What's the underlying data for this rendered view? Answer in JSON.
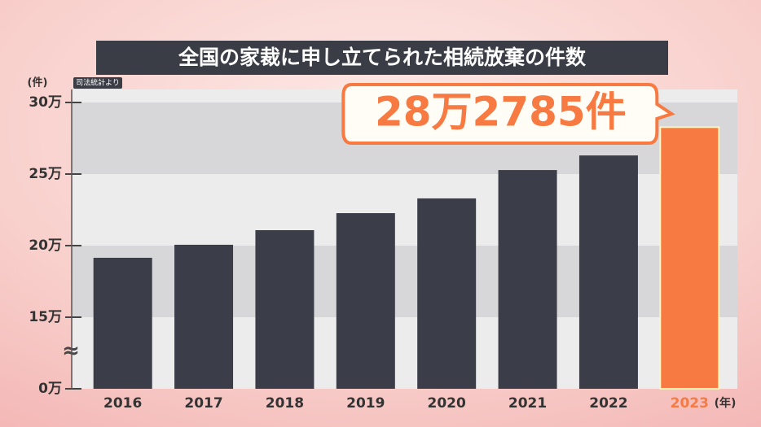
{
  "chart_data": {
    "type": "bar",
    "title": "全国の家裁に申し立てられた相続放棄の件数",
    "y_unit": "(件)",
    "x_unit": "(年)",
    "source": "司法統計より",
    "categories": [
      "2016",
      "2017",
      "2018",
      "2019",
      "2020",
      "2021",
      "2022",
      "2023"
    ],
    "values": [
      191500,
      200600,
      210800,
      222700,
      233000,
      252800,
      263000,
      282785
    ],
    "value_labels": [
      null,
      null,
      null,
      null,
      null,
      null,
      null,
      "28万2785件"
    ],
    "color": "#3b3e49",
    "highlight_index": 7,
    "highlight_color": "#f77a42",
    "ylim": [
      0,
      300000
    ],
    "axis_break": [
      0,
      150000
    ],
    "yticks": [
      {
        "value": 0,
        "label": "0万"
      },
      {
        "value": 150000,
        "label": "15万"
      },
      {
        "value": 200000,
        "label": "20万"
      },
      {
        "value": 250000,
        "label": "25万"
      },
      {
        "value": 300000,
        "label": "30万"
      }
    ]
  }
}
